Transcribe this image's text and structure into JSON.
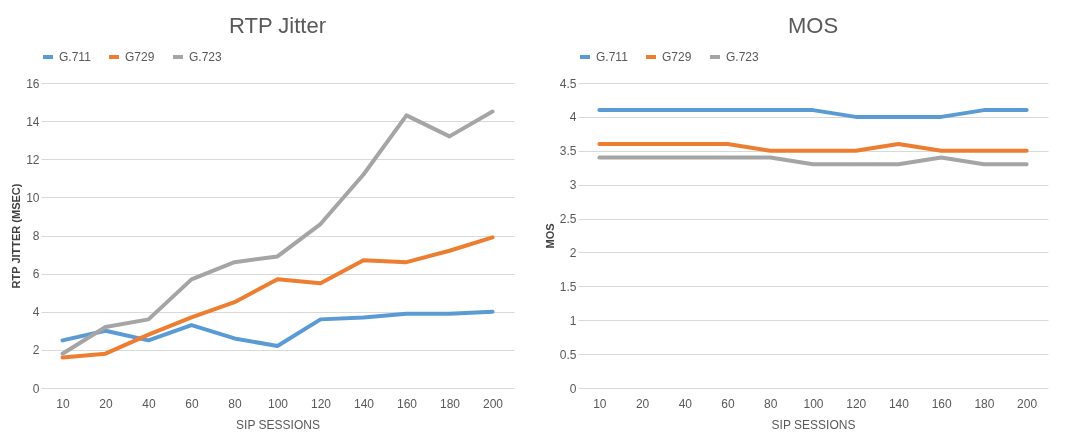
{
  "chart_data": [
    {
      "type": "line",
      "title": "RTP Jitter",
      "xlabel": "SIP SESSIONS",
      "ylabel": "RTP JITTER (MSEC)",
      "categories": [
        "10",
        "20",
        "40",
        "60",
        "80",
        "100",
        "120",
        "140",
        "160",
        "180",
        "200"
      ],
      "ylim": [
        0,
        16
      ],
      "yticks": [
        0,
        2,
        4,
        6,
        8,
        10,
        12,
        14,
        16
      ],
      "grid": "y",
      "legend": "top",
      "line_style": "solid",
      "series": [
        {
          "name": "G.711",
          "color": "#5b9bd5",
          "values": [
            2.5,
            3.0,
            2.5,
            3.3,
            2.6,
            2.2,
            3.6,
            3.7,
            3.9,
            3.9,
            4.0
          ]
        },
        {
          "name": "G729",
          "color": "#ed7d31",
          "values": [
            1.6,
            1.8,
            2.8,
            3.7,
            4.5,
            5.7,
            5.5,
            6.7,
            6.6,
            7.2,
            7.9
          ]
        },
        {
          "name": "G.723",
          "color": "#a5a5a5",
          "values": [
            1.8,
            3.2,
            3.6,
            5.7,
            6.6,
            6.9,
            8.6,
            11.2,
            14.3,
            13.2,
            14.5
          ]
        }
      ]
    },
    {
      "type": "line",
      "title": "MOS",
      "xlabel": "SIP SESSIONS",
      "ylabel": "MOS",
      "categories": [
        "10",
        "20",
        "40",
        "60",
        "80",
        "100",
        "120",
        "140",
        "160",
        "180",
        "200"
      ],
      "ylim": [
        0,
        4.5
      ],
      "yticks": [
        0,
        0.5,
        1,
        1.5,
        2,
        2.5,
        3,
        3.5,
        4,
        4.5
      ],
      "grid": "y",
      "legend": "top",
      "line_style": "solid",
      "series": [
        {
          "name": "G.711",
          "color": "#5b9bd5",
          "values": [
            4.1,
            4.1,
            4.1,
            4.1,
            4.1,
            4.1,
            4.0,
            4.0,
            4.0,
            4.1,
            4.1
          ]
        },
        {
          "name": "G729",
          "color": "#ed7d31",
          "values": [
            3.6,
            3.6,
            3.6,
            3.6,
            3.5,
            3.5,
            3.5,
            3.6,
            3.5,
            3.5,
            3.5
          ]
        },
        {
          "name": "G.723",
          "color": "#a5a5a5",
          "values": [
            3.4,
            3.4,
            3.4,
            3.4,
            3.4,
            3.3,
            3.3,
            3.3,
            3.4,
            3.3,
            3.3
          ]
        }
      ]
    }
  ]
}
